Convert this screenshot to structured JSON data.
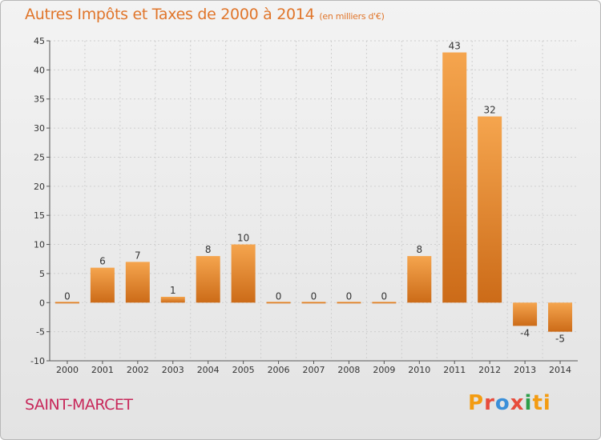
{
  "header": {
    "title": "Autres Impôts et Taxes de 2000 à 2014",
    "subtitle": "(en milliers d'€)"
  },
  "footer": {
    "commune": "SAINT-MARCET",
    "brand": [
      "P",
      "r",
      "o",
      "x",
      "i",
      "ti"
    ]
  },
  "colors": {
    "bar_light": "#f5a54e",
    "bar_dark": "#cc6b18",
    "title": "#e0752a",
    "commune": "#c8285a",
    "grid": "#cfcfcf"
  },
  "chart_data": {
    "type": "bar",
    "title": "Autres Impôts et Taxes de 2000 à 2014",
    "subtitle": "(en milliers d'€)",
    "xlabel": "",
    "ylabel": "",
    "categories": [
      "2000",
      "2001",
      "2002",
      "2003",
      "2004",
      "2005",
      "2006",
      "2007",
      "2008",
      "2009",
      "2010",
      "2011",
      "2012",
      "2013",
      "2014"
    ],
    "values": [
      0,
      6,
      7,
      1,
      8,
      10,
      0,
      0,
      0,
      0,
      8,
      43,
      32,
      -4,
      -5
    ],
    "data_labels": [
      "0",
      "6",
      "7",
      "1",
      "8",
      "10",
      "0",
      "0",
      "0",
      "0",
      "8",
      "43",
      "32",
      "-4",
      "-5"
    ],
    "ylim": [
      -10,
      45
    ],
    "yticks": [
      -10,
      -5,
      0,
      5,
      10,
      15,
      20,
      25,
      30,
      35,
      40,
      45
    ],
    "ytick_labels": [
      "-10",
      "-5",
      "0",
      "5",
      "10",
      "15",
      "20",
      "25",
      "30",
      "35",
      "40",
      "45"
    ],
    "grid": true,
    "legend": "none"
  }
}
